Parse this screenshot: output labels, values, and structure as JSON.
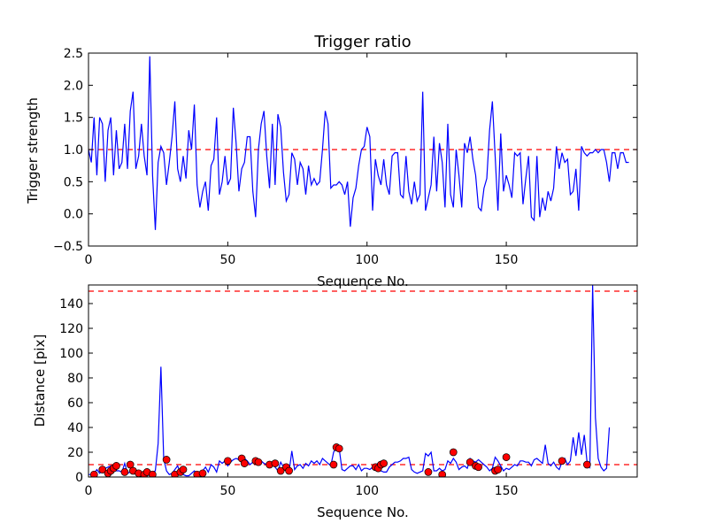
{
  "chart_data": [
    {
      "type": "line",
      "title": "Trigger ratio",
      "xlabel": "Sequence No.",
      "ylabel": "Trigger strength",
      "xlim": [
        0,
        197
      ],
      "ylim": [
        -0.5,
        2.5
      ],
      "xticks": [
        0,
        50,
        100,
        150
      ],
      "yticks": [
        -0.5,
        0.0,
        0.5,
        1.0,
        1.5,
        2.0,
        2.5
      ],
      "xtick_labels": [
        "0",
        "50",
        "100",
        "150"
      ],
      "ytick_labels": [
        "−0.5",
        "0.0",
        "0.5",
        "1.0",
        "1.5",
        "2.0",
        "2.5"
      ],
      "grid": false,
      "threshold_lines": [
        {
          "y": 1.0,
          "color": "#ff0000",
          "style": "dashed"
        }
      ],
      "series": [
        {
          "color": "#0000ff",
          "values": [
            1.0,
            0.8,
            1.5,
            0.6,
            1.5,
            1.4,
            0.5,
            1.3,
            1.5,
            0.6,
            1.3,
            0.7,
            0.8,
            1.4,
            0.7,
            1.6,
            1.9,
            0.7,
            0.9,
            1.4,
            0.9,
            0.6,
            2.45,
            0.6,
            -0.25,
            0.8,
            1.05,
            0.95,
            0.45,
            0.8,
            1.2,
            1.75,
            0.7,
            0.5,
            0.9,
            0.55,
            1.3,
            1.0,
            1.7,
            0.45,
            0.1,
            0.35,
            0.5,
            0.05,
            0.75,
            0.85,
            1.5,
            0.3,
            0.5,
            0.9,
            0.45,
            0.55,
            1.65,
            1.1,
            0.35,
            0.7,
            0.8,
            1.2,
            1.2,
            0.35,
            -0.05,
            1.0,
            1.4,
            1.6,
            0.9,
            0.4,
            1.4,
            0.45,
            1.55,
            1.35,
            0.65,
            0.2,
            0.3,
            0.95,
            0.85,
            0.45,
            0.8,
            0.7,
            0.3,
            0.75,
            0.45,
            0.55,
            0.45,
            0.5,
            1.0,
            1.6,
            1.4,
            0.4,
            0.45,
            0.45,
            0.5,
            0.45,
            0.3,
            0.5,
            -0.2,
            0.25,
            0.4,
            0.75,
            1.0,
            1.05,
            1.35,
            1.2,
            0.05,
            0.85,
            0.6,
            0.45,
            0.85,
            0.45,
            0.3,
            0.9,
            0.95,
            0.95,
            0.3,
            0.25,
            0.9,
            0.35,
            0.15,
            0.5,
            0.2,
            0.3,
            1.9,
            0.05,
            0.25,
            0.45,
            1.2,
            0.35,
            1.1,
            0.8,
            0.1,
            1.4,
            0.3,
            0.1,
            1.0,
            0.6,
            0.1,
            1.1,
            0.95,
            1.2,
            0.85,
            0.6,
            0.1,
            0.05,
            0.4,
            0.55,
            1.3,
            1.75,
            0.9,
            0.05,
            1.25,
            0.35,
            0.6,
            0.45,
            0.25,
            0.95,
            0.9,
            0.95,
            0.15,
            0.55,
            0.9,
            -0.05,
            -0.1,
            0.9,
            -0.05,
            0.25,
            0.05,
            0.35,
            0.2,
            0.4,
            1.05,
            0.7,
            0.95,
            0.8,
            0.85,
            0.3,
            0.35,
            0.7,
            0.05,
            1.05,
            0.95,
            0.9,
            0.95,
            0.95,
            1.0,
            0.95,
            1.0,
            1.0,
            0.8,
            0.5,
            0.95,
            0.95,
            0.7,
            0.95,
            0.95,
            0.8,
            0.8
          ]
        }
      ]
    },
    {
      "type": "line",
      "title": "",
      "xlabel": "Sequence No.",
      "ylabel": "Distance [pix]",
      "xlim": [
        0,
        197
      ],
      "ylim": [
        0,
        155
      ],
      "xticks": [
        0,
        50,
        100,
        150
      ],
      "yticks": [
        0,
        20,
        40,
        60,
        80,
        100,
        120,
        140
      ],
      "xtick_labels": [
        "0",
        "50",
        "100",
        "150"
      ],
      "ytick_labels": [
        "0",
        "20",
        "40",
        "60",
        "80",
        "100",
        "120",
        "140"
      ],
      "grid": false,
      "threshold_lines": [
        {
          "y": 10,
          "color": "#ff0000",
          "style": "dashed"
        },
        {
          "y": 150,
          "color": "#ff0000",
          "style": "dashed"
        }
      ],
      "series": [
        {
          "color": "#0000ff",
          "values": [
            2,
            2,
            3,
            6,
            3,
            5,
            7,
            8,
            9,
            7,
            5,
            5,
            4,
            11,
            3,
            4,
            5,
            3,
            2,
            4,
            3,
            2,
            1,
            4,
            5,
            27,
            89,
            15,
            5,
            2,
            3,
            6,
            9,
            3,
            2,
            1,
            1,
            3,
            5,
            3,
            4,
            5,
            8,
            4,
            10,
            8,
            4,
            13,
            11,
            13,
            9,
            12,
            14,
            15,
            14,
            13,
            15,
            13,
            10,
            12,
            13,
            14,
            13,
            11,
            10,
            11,
            11,
            8,
            5,
            12,
            8,
            5,
            4,
            21,
            6,
            9,
            10,
            7,
            11,
            9,
            13,
            11,
            13,
            10,
            15,
            13,
            11,
            9,
            20,
            24,
            23,
            6,
            5,
            7,
            9,
            9,
            6,
            10,
            5,
            7,
            7,
            6,
            8,
            10,
            11,
            5,
            4,
            4,
            8,
            10,
            12,
            12,
            13,
            15,
            15,
            16,
            6,
            4,
            3,
            4,
            5,
            19,
            17,
            20,
            5,
            5,
            7,
            5,
            6,
            13,
            11,
            15,
            12,
            6,
            8,
            9,
            7,
            15,
            13,
            12,
            14,
            12,
            10,
            8,
            5,
            7,
            16,
            13,
            9,
            5,
            7,
            6,
            8,
            10,
            9,
            13,
            13,
            12,
            12,
            9,
            14,
            15,
            13,
            11,
            26,
            11,
            9,
            12,
            8,
            6,
            12,
            15,
            10,
            13,
            32,
            17,
            36,
            18,
            34,
            12,
            8,
            155,
            48,
            15,
            8,
            5,
            7,
            40
          ],
          "markers": {
            "color": "#ff0000",
            "points": [
              [
                2,
                2
              ],
              [
                5,
                6
              ],
              [
                7,
                3
              ],
              [
                8,
                5
              ],
              [
                9,
                7
              ],
              [
                10,
                9
              ],
              [
                13,
                4
              ],
              [
                15,
                10
              ],
              [
                16,
                5
              ],
              [
                18,
                3
              ],
              [
                20,
                2
              ],
              [
                21,
                4
              ],
              [
                23,
                2
              ],
              [
                28,
                14
              ],
              [
                31,
                2
              ],
              [
                33,
                4
              ],
              [
                34,
                6
              ],
              [
                39,
                2
              ],
              [
                41,
                3
              ],
              [
                50,
                13
              ],
              [
                55,
                15
              ],
              [
                56,
                11
              ],
              [
                60,
                13
              ],
              [
                61,
                12
              ],
              [
                65,
                10
              ],
              [
                67,
                11
              ],
              [
                69,
                5
              ],
              [
                71,
                8
              ],
              [
                72,
                5
              ],
              [
                88,
                10
              ],
              [
                89,
                24
              ],
              [
                90,
                23
              ],
              [
                103,
                8
              ],
              [
                104,
                7
              ],
              [
                105,
                10
              ],
              [
                106,
                11
              ],
              [
                122,
                4
              ],
              [
                127,
                2
              ],
              [
                131,
                20
              ],
              [
                137,
                12
              ],
              [
                139,
                9
              ],
              [
                140,
                8
              ],
              [
                146,
                5
              ],
              [
                147,
                6
              ],
              [
                150,
                16
              ],
              [
                170,
                13
              ],
              [
                179,
                10
              ]
            ]
          }
        }
      ]
    }
  ]
}
